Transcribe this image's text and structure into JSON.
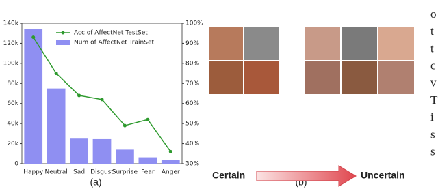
{
  "chart_data": {
    "type": "bar",
    "categories": [
      "Happy",
      "Neutral",
      "Sad",
      "Disgust",
      "Surprise",
      "Fear",
      "Anger"
    ],
    "series": [
      {
        "name": "Acc of AffectNet TestSet",
        "color": "#2e9a2e",
        "axis": "y2",
        "values": [
          93,
          75,
          64,
          62,
          49,
          52,
          36
        ]
      },
      {
        "name": "Num of AffectNet TrainSet",
        "color": "#8f8ff2",
        "values": [
          134000,
          75000,
          25000,
          24500,
          14000,
          6400,
          3800
        ]
      }
    ],
    "ylim": [
      0,
      140000
    ],
    "yticks": [
      0,
      {
        "value": 20000,
        "label": "20k"
      },
      {
        "value": 40000,
        "label": "40k"
      },
      {
        "value": 60000,
        "label": "60k"
      },
      {
        "value": 80000,
        "label": "80k"
      },
      {
        "value": 100000,
        "label": "100k"
      },
      {
        "value": 120000,
        "label": "120k"
      },
      {
        "value": 140000,
        "label": "140k"
      }
    ],
    "y2lim": [
      30,
      100
    ],
    "y2ticks": [
      {
        "value": 30,
        "label": "30%"
      },
      {
        "value": 40,
        "label": "40%"
      },
      {
        "value": 50,
        "label": "50%"
      },
      {
        "value": 60,
        "label": "60%"
      },
      {
        "value": 70,
        "label": "70%"
      },
      {
        "value": 80,
        "label": "80%"
      },
      {
        "value": 90,
        "label": "90%"
      },
      {
        "value": 100,
        "label": "100%"
      }
    ],
    "legend": "upper right"
  },
  "captions": {
    "a": "(a)",
    "b": "(b)"
  },
  "arrow": {
    "from": "Certain",
    "to": "Uncertain"
  },
  "margin_letters": [
    "o",
    "t",
    "t",
    "c",
    "v",
    "T",
    "i",
    "s",
    "s"
  ]
}
